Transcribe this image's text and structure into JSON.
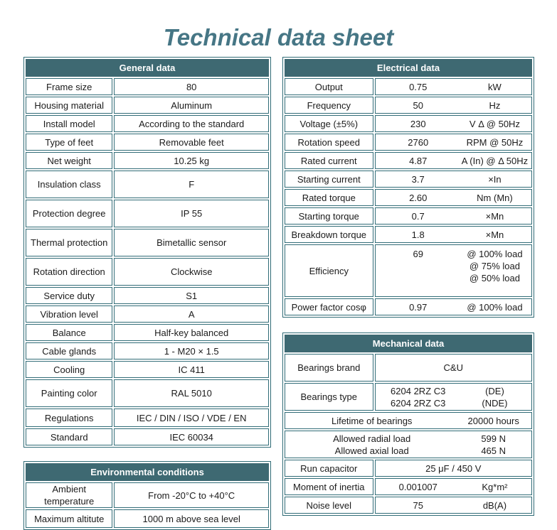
{
  "page": {
    "title": "Technical data sheet"
  },
  "colors": {
    "header_bg": "#3E6972",
    "border": "#316C77",
    "title": "#467685",
    "header_text": "#FFFFFF",
    "cell_text": "#1B1B1B"
  },
  "tables": {
    "general": {
      "title": "General data",
      "layout": "two",
      "rows": [
        {
          "label": "Frame size",
          "value": "80",
          "size": "s"
        },
        {
          "label": "Housing material",
          "value": "Aluminum",
          "size": "s"
        },
        {
          "label": "Install model",
          "value": "According to the standard",
          "size": "s"
        },
        {
          "label": "Type of feet",
          "value": "Removable feet",
          "size": "s"
        },
        {
          "label": "Net weight",
          "value": "10.25 kg",
          "size": "s"
        },
        {
          "label": "Insulation class",
          "value": "F",
          "size": "l"
        },
        {
          "label": "Protection degree",
          "value": "IP 55",
          "size": "l"
        },
        {
          "label": "Thermal protection",
          "value": "Bimetallic sensor",
          "size": "l"
        },
        {
          "label": "Rotation direction",
          "value": "Clockwise",
          "size": "l"
        },
        {
          "label": "Service duty",
          "value": "S1",
          "size": "s"
        },
        {
          "label": "Vibration level",
          "value": "A",
          "size": "s"
        },
        {
          "label": "Balance",
          "value": "Half-key balanced",
          "size": "s"
        },
        {
          "label": "Cable glands",
          "value": "1 - M20 × 1.5",
          "size": "s"
        },
        {
          "label": "Cooling",
          "value": "IC 411",
          "size": "s"
        },
        {
          "label": "Painting color",
          "value": "RAL 5010",
          "size": "l"
        },
        {
          "label": "Regulations",
          "value": "IEC / DIN / ISO / VDE / EN",
          "size": "m"
        },
        {
          "label": "Standard",
          "value": "IEC 60034",
          "size": "s"
        }
      ]
    },
    "environmental": {
      "title": "Environmental conditions",
      "layout": "two",
      "rows": [
        {
          "label": "Ambient temperature",
          "value": "From -20°C to +40°C",
          "size": "m"
        },
        {
          "label": "Maximum altitute",
          "value": "1000 m above sea level",
          "size": "m"
        }
      ]
    },
    "electrical": {
      "title": "Electrical data",
      "layout": "three",
      "rows": [
        {
          "label": "Output",
          "value": "0.75",
          "unit": "kW",
          "size": "s"
        },
        {
          "label": "Frequency",
          "value": "50",
          "unit": "Hz",
          "size": "s"
        },
        {
          "label": "Voltage (±5%)",
          "value": "230",
          "unit": "V Δ @ 50Hz",
          "size": "s"
        },
        {
          "label": "Rotation speed",
          "value": "2760",
          "unit": "RPM @ 50Hz",
          "size": "s"
        },
        {
          "label": "Rated current",
          "value": "4.87",
          "unit": "A (In) @ Δ 50Hz",
          "size": "s"
        },
        {
          "label": "Starting current",
          "value": "3.7",
          "unit": "×In",
          "size": "s"
        },
        {
          "label": "Rated torque",
          "value": "2.60",
          "unit": "Nm (Mn)",
          "size": "s"
        },
        {
          "label": "Starting torque",
          "value": "0.7",
          "unit": "×Mn",
          "size": "s"
        },
        {
          "label": "Breakdown torque",
          "value": "1.8",
          "unit": "×Mn",
          "size": "s"
        },
        {
          "label": "Efficiency",
          "value": "69",
          "unit_lines": [
            "@ 100% load",
            "@ 75% load",
            "@ 50% load"
          ],
          "size": "xl",
          "top": true
        },
        {
          "label": "Power factor cosφ",
          "value": "0.97",
          "unit": "@ 100% load",
          "size": "s"
        }
      ]
    },
    "mechanical": {
      "title": "Mechanical data",
      "layout": "three",
      "rows": [
        {
          "label": "Bearings brand",
          "merged_value": "C&U",
          "size": "l"
        },
        {
          "label": "Bearings type",
          "value_lines": [
            "6204 2RZ C3",
            "6204 2RZ C3"
          ],
          "unit_lines": [
            "(DE)",
            "(NDE)"
          ],
          "size": "l"
        },
        {
          "left_lines": [
            "Lifetime of bearings"
          ],
          "unit": "20000 hours",
          "size": "s"
        },
        {
          "left_lines": [
            "Allowed radial load",
            "Allowed axial load"
          ],
          "unit_lines": [
            "599 N",
            "465 N"
          ],
          "size": "l"
        },
        {
          "label": "Run capacitor",
          "merged_value": "25 μF / 450 V",
          "size": "s"
        },
        {
          "label": "Moment of inertia",
          "value": "0.001007",
          "unit": "Kg*m²",
          "size": "s"
        },
        {
          "label": "Noise level",
          "value": "75",
          "unit": "dB(A)",
          "size": "s"
        }
      ]
    }
  }
}
